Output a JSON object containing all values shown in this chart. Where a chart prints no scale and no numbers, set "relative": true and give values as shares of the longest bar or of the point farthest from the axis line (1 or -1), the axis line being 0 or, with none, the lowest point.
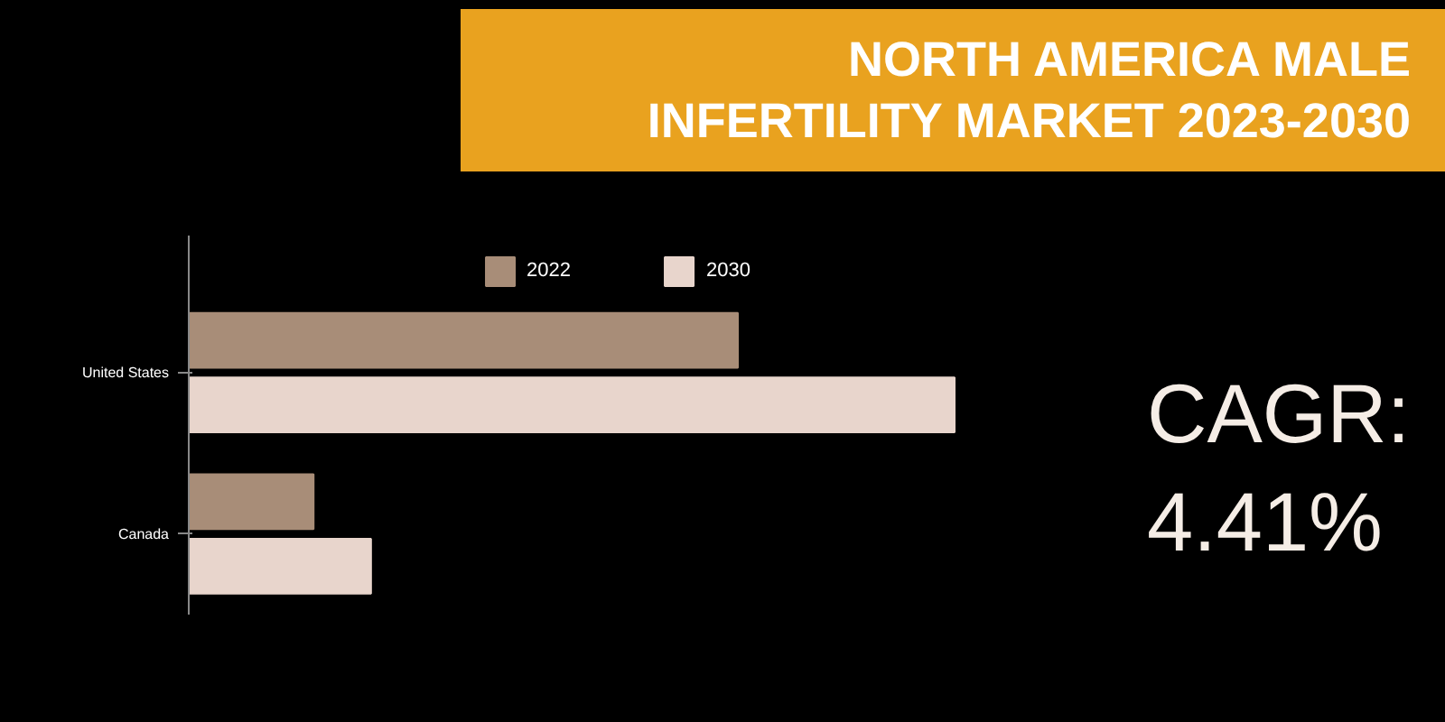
{
  "chart_data": {
    "type": "bar",
    "orientation": "horizontal",
    "relative": true,
    "title": "NORTH AMERICA MALE INFERTILITY MARKET 2023-2030",
    "categories": [
      "United States",
      "Canada"
    ],
    "series": [
      {
        "name": "2022",
        "color": "#a88d78",
        "values": [
          0.717,
          0.163
        ]
      },
      {
        "name": "2030",
        "color": "#e8d5cc",
        "values": [
          1,
          0.238
        ]
      }
    ],
    "legend": "top",
    "grid": false,
    "annotations": [
      "CAGR: 4.41%"
    ]
  }
}
